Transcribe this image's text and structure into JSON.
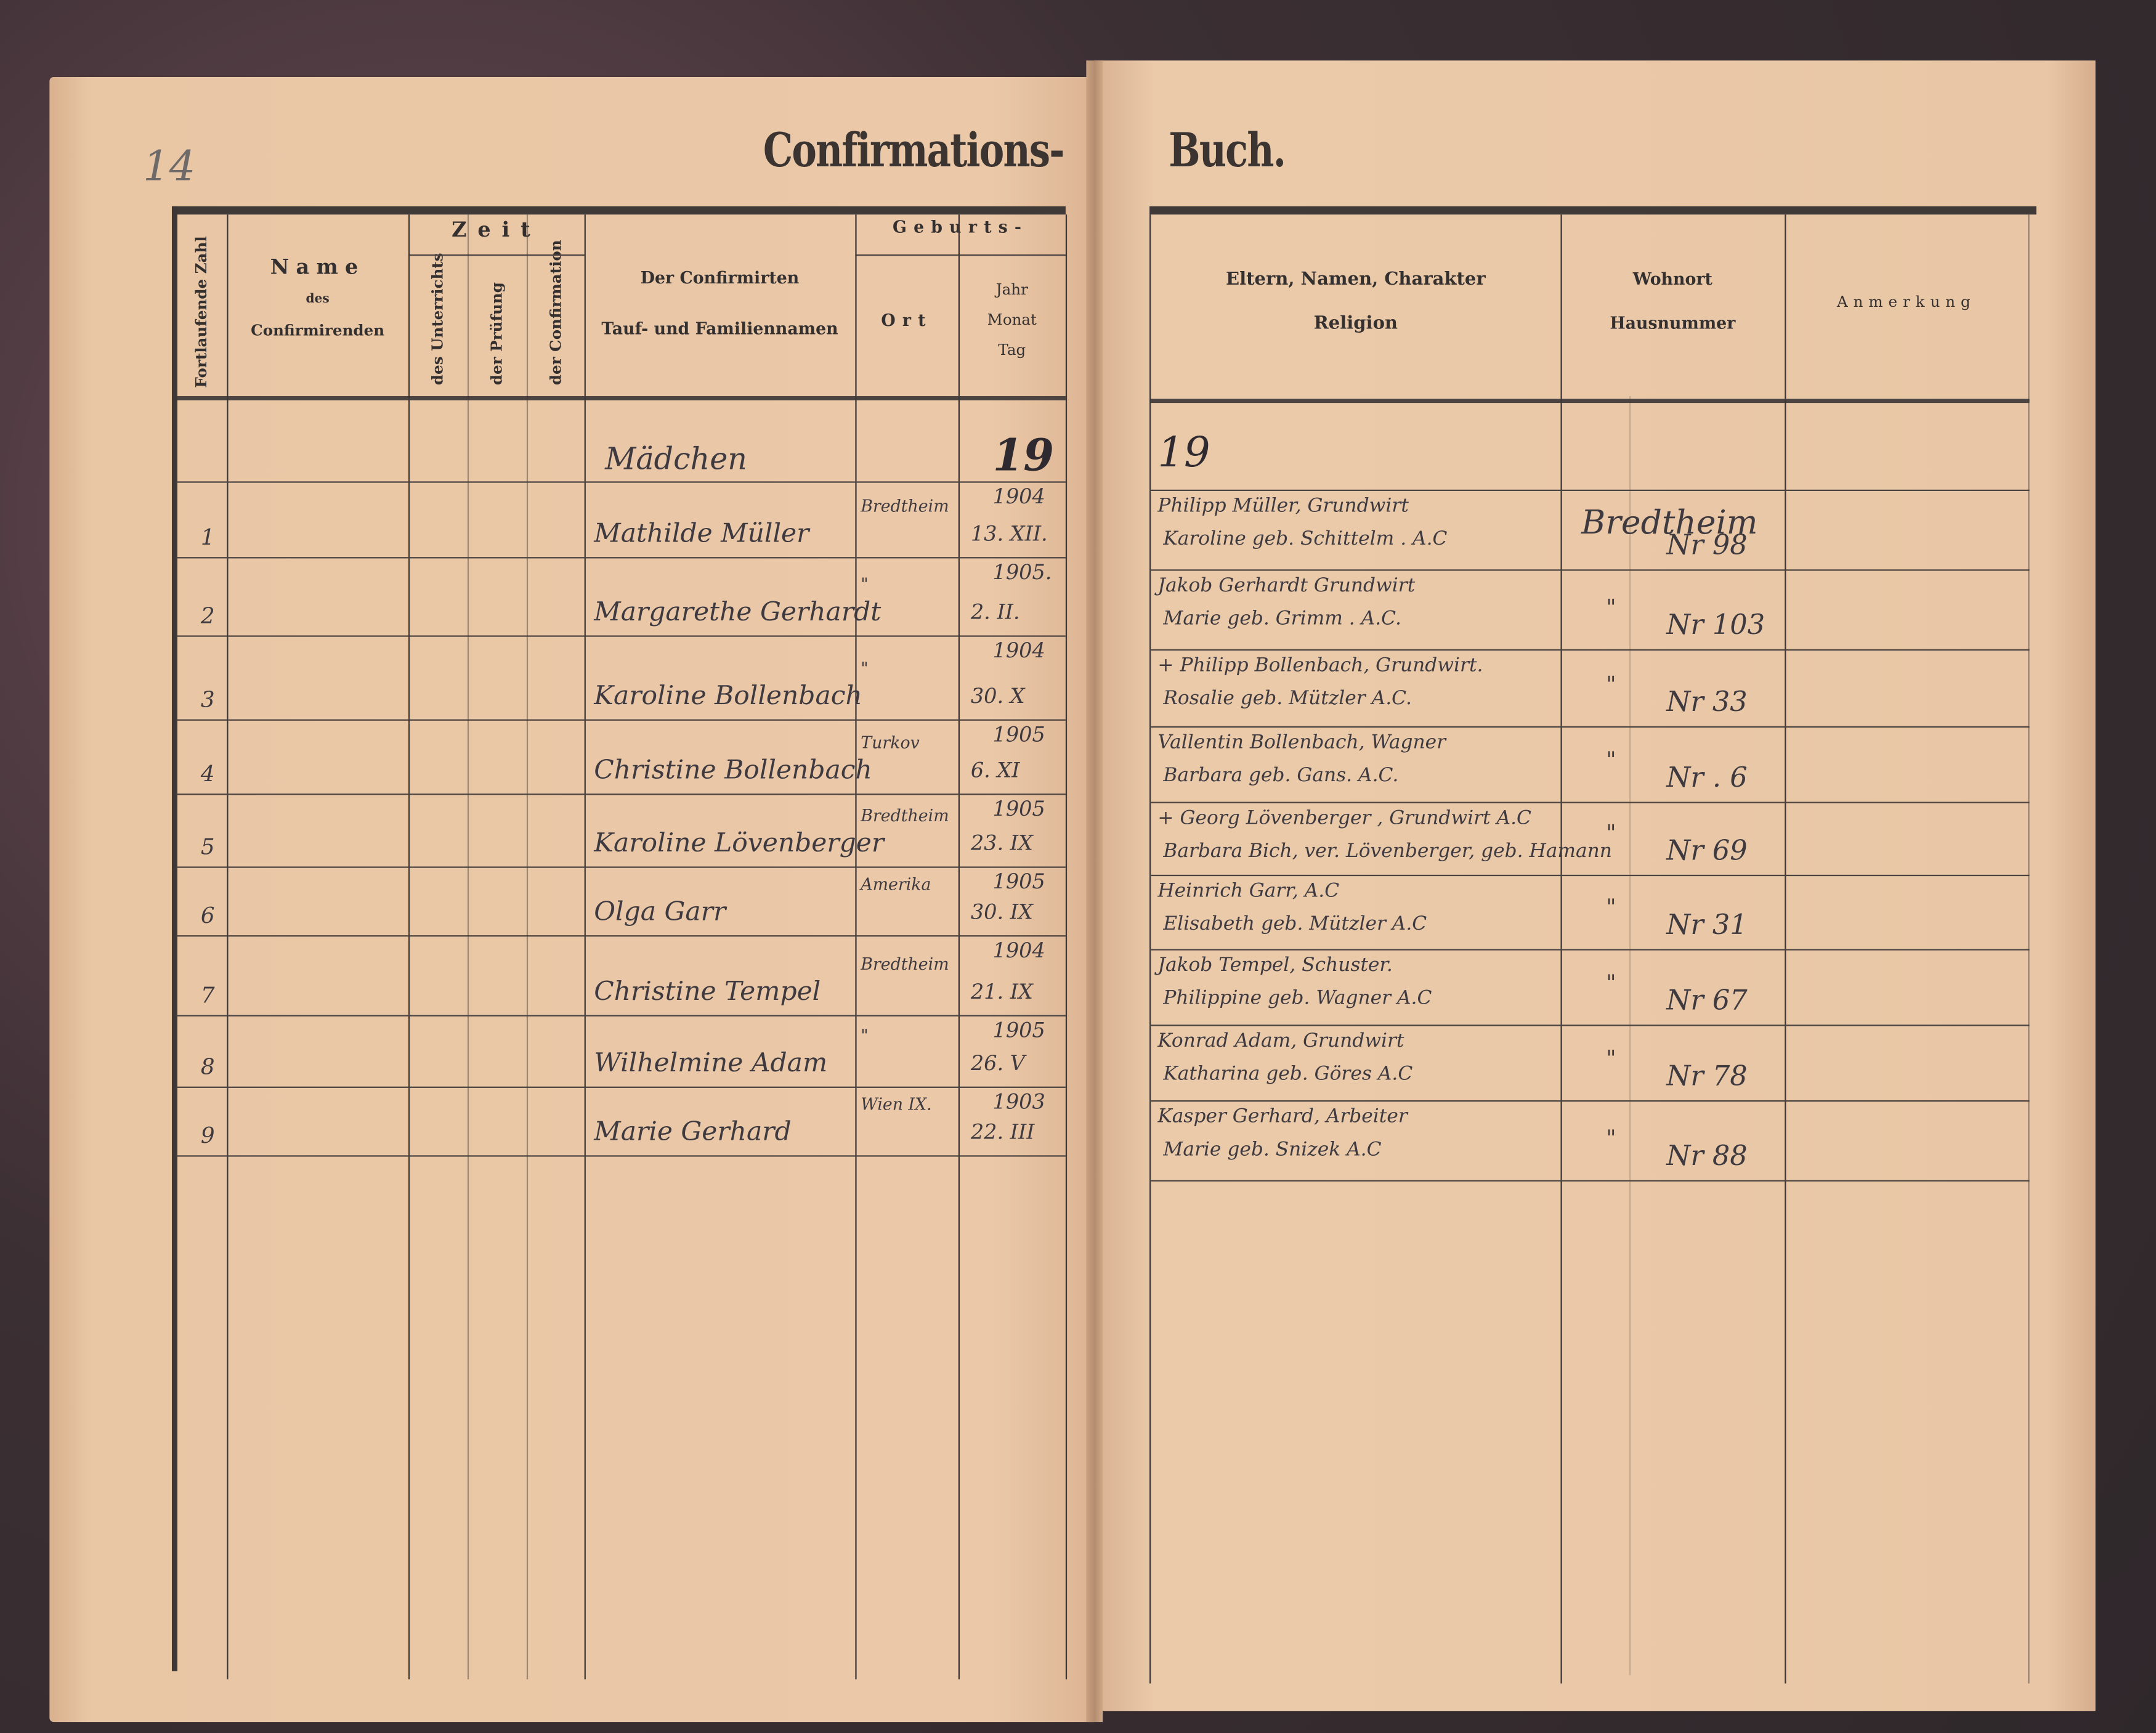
{
  "page_number": "14",
  "title": {
    "left": "Confirmations-",
    "right": "Buch."
  },
  "left_headers": {
    "number": "Fortlaufende Zahl",
    "name_line1": "Name",
    "name_line2": "des",
    "name_line3": "Confirmirenden",
    "zeit": "Zeit",
    "zeit_unterricht": "des Unterrichts",
    "zeit_pruefung": "der Prüfung",
    "zeit_confirmation": "der Confirmation",
    "confirmirten_line1": "Der Confirmirten",
    "confirmirten_line2": "Tauf- und Familiennamen",
    "geburts": "Geburts-",
    "ort": "Ort",
    "jahr": "Jahr",
    "monat": "Monat",
    "tag": "Tag"
  },
  "right_headers": {
    "eltern_line1": "Eltern, Namen, Charakter",
    "eltern_line2": "Religion",
    "wohnort_line1": "Wohnort",
    "wohnort_line2": "Hausnummer",
    "anmerkung": "Anmerkung"
  },
  "section": {
    "label": "Mädchen",
    "year_left": "19",
    "year_right": "19"
  },
  "rows": [
    {
      "no": "1",
      "name": "Mathilde Müller",
      "ort": "Bredtheim",
      "jahr": "1904",
      "tag_monat": "13. XII.",
      "eltern1": "Philipp Müller, Grundwirt",
      "eltern2": "Karoline geb. Schittelm . A.C",
      "wohnort": "Bredtheim",
      "haus": "Nr 98"
    },
    {
      "no": "2",
      "name": "Margarethe Gerhardt",
      "ort": "\"",
      "jahr": "1905.",
      "tag_monat": "2. II.",
      "eltern1": "Jakob Gerhardt Grundwirt",
      "eltern2": "Marie geb. Grimm . A.C.",
      "wohnort": "\"",
      "haus": "Nr 103"
    },
    {
      "no": "3",
      "name": "Karoline Bollenbach",
      "ort": "\"",
      "jahr": "1904",
      "tag_monat": "30. X",
      "eltern1": "+ Philipp Bollenbach, Grundwirt.",
      "eltern2": "Rosalie geb. Mützler  A.C.",
      "wohnort": "\"",
      "haus": "Nr 33"
    },
    {
      "no": "4",
      "name": "Christine Bollenbach",
      "ort": "Turkov",
      "jahr": "1905",
      "tag_monat": "6. XI",
      "eltern1": "Vallentin Bollenbach, Wagner",
      "eltern2": "Barbara geb. Gans.  A.C.",
      "wohnort": "\"",
      "haus": "Nr . 6"
    },
    {
      "no": "5",
      "name": "Karoline Lövenberger",
      "ort": "Bredtheim",
      "jahr": "1905",
      "tag_monat": "23. IX",
      "eltern1": "+ Georg Lövenberger , Grundwirt A.C",
      "eltern2": "Barbara Bich, ver. Lövenberger, geb. Hamann",
      "wohnort": "\"",
      "haus": "Nr 69"
    },
    {
      "no": "6",
      "name": "Olga Garr",
      "ort": "Amerika",
      "jahr": "1905",
      "tag_monat": "30. IX",
      "eltern1": "Heinrich Garr,   A.C",
      "eltern2": "Elisabeth geb. Mützler  A.C",
      "wohnort": "\"",
      "haus": "Nr 31"
    },
    {
      "no": "7",
      "name": "Christine Tempel",
      "ort": "Bredtheim",
      "jahr": "1904",
      "tag_monat": "21. IX",
      "eltern1": "Jakob Tempel, Schuster.",
      "eltern2": "Philippine geb. Wagner  A.C",
      "wohnort": "\"",
      "haus": "Nr 67"
    },
    {
      "no": "8",
      "name": "Wilhelmine Adam",
      "ort": "\"",
      "jahr": "1905",
      "tag_monat": "26. V",
      "eltern1": "Konrad Adam, Grundwirt",
      "eltern2": "Katharina geb. Göres   A.C",
      "wohnort": "\"",
      "haus": "Nr 78"
    },
    {
      "no": "9",
      "name": "Marie Gerhard",
      "ort": "Wien IX.",
      "jahr": "1903",
      "tag_monat": "22. III",
      "eltern1": "Kasper Gerhard, Arbeiter",
      "eltern2": "Marie geb. Snizek   A.C",
      "wohnort": "\"",
      "haus": "Nr 88"
    }
  ],
  "colors": {
    "paper": "#e8c5a3",
    "ink": "#3e3a40",
    "print": "#353030",
    "cover": "#3d3134"
  }
}
